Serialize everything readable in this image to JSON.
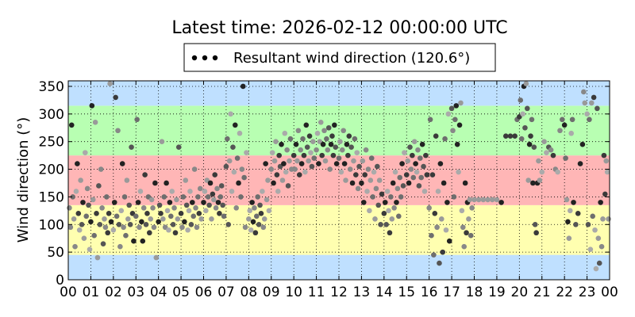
{
  "chart_data": {
    "type": "scatter",
    "title": "Latest time: 2026-02-12 00:00:00 UTC",
    "xlabel": "",
    "ylabel": "Wind direction (°)",
    "legend": {
      "label": "Resultant wind direction (120.6°)",
      "placement": "top-center"
    },
    "xlim": [
      0,
      24
    ],
    "ylim": [
      0,
      360
    ],
    "x_ticks": [
      "00",
      "01",
      "02",
      "03",
      "04",
      "05",
      "06",
      "07",
      "08",
      "09",
      "10",
      "11",
      "12",
      "13",
      "14",
      "15",
      "16",
      "17",
      "18",
      "19",
      "20",
      "21",
      "22",
      "23",
      "00"
    ],
    "y_ticks": [
      0,
      50,
      100,
      150,
      200,
      250,
      300,
      350
    ],
    "grid": true,
    "bands": [
      {
        "from": 0,
        "to": 45,
        "color": "#bfe0ff"
      },
      {
        "from": 45,
        "to": 135,
        "color": "#ffffb0"
      },
      {
        "from": 135,
        "to": 225,
        "color": "#ffb6b6"
      },
      {
        "from": 225,
        "to": 315,
        "color": "#b8ffb2"
      },
      {
        "from": 315,
        "to": 360,
        "color": "#bfe0ff"
      }
    ],
    "points": [
      [
        0.05,
        130
      ],
      [
        0.1,
        95
      ],
      [
        0.15,
        280
      ],
      [
        0.2,
        150
      ],
      [
        0.25,
        110
      ],
      [
        0.3,
        60
      ],
      [
        0.35,
        160
      ],
      [
        0.4,
        210
      ],
      [
        0.45,
        120
      ],
      [
        0.5,
        90
      ],
      [
        0.55,
        180
      ],
      [
        0.6,
        100
      ],
      [
        0.65,
        140
      ],
      [
        0.7,
        75
      ],
      [
        0.75,
        230
      ],
      [
        0.8,
        115
      ],
      [
        0.85,
        165
      ],
      [
        0.9,
        135
      ],
      [
        0.95,
        55
      ],
      [
        1.0,
        105
      ],
      [
        1.05,
        315
      ],
      [
        1.1,
        145
      ],
      [
        1.15,
        80
      ],
      [
        1.2,
        285
      ],
      [
        1.25,
        120
      ],
      [
        1.3,
        40
      ],
      [
        1.35,
        170
      ],
      [
        1.4,
        100
      ],
      [
        1.45,
        200
      ],
      [
        1.5,
        130
      ],
      [
        1.55,
        65
      ],
      [
        1.6,
        110
      ],
      [
        1.65,
        95
      ],
      [
        1.7,
        150
      ],
      [
        1.75,
        85
      ],
      [
        1.8,
        120
      ],
      [
        1.85,
        355
      ],
      [
        1.9,
        105
      ],
      [
        2.0,
        90
      ],
      [
        2.05,
        140
      ],
      [
        2.1,
        330
      ],
      [
        2.15,
        115
      ],
      [
        2.2,
        270
      ],
      [
        2.25,
        100
      ],
      [
        2.3,
        60
      ],
      [
        2.35,
        125
      ],
      [
        2.4,
        210
      ],
      [
        2.45,
        95
      ],
      [
        2.5,
        150
      ],
      [
        2.55,
        80
      ],
      [
        2.6,
        180
      ],
      [
        2.65,
        110
      ],
      [
        2.7,
        135
      ],
      [
        2.75,
        100
      ],
      [
        2.8,
        240
      ],
      [
        2.85,
        120
      ],
      [
        2.9,
        70
      ],
      [
        3.0,
        115
      ],
      [
        3.05,
        290
      ],
      [
        3.1,
        140
      ],
      [
        3.15,
        95
      ],
      [
        3.2,
        160
      ],
      [
        3.25,
        105
      ],
      [
        3.3,
        70
      ],
      [
        3.35,
        130
      ],
      [
        3.4,
        190
      ],
      [
        3.45,
        100
      ],
      [
        3.5,
        120
      ],
      [
        3.55,
        150
      ],
      [
        3.6,
        85
      ],
      [
        3.65,
        110
      ],
      [
        3.7,
        145
      ],
      [
        3.75,
        130
      ],
      [
        3.8,
        95
      ],
      [
        3.85,
        175
      ],
      [
        3.9,
        40
      ],
      [
        4.0,
        105
      ],
      [
        4.05,
        135
      ],
      [
        4.1,
        120
      ],
      [
        4.15,
        250
      ],
      [
        4.2,
        110
      ],
      [
        4.25,
        150
      ],
      [
        4.3,
        95
      ],
      [
        4.35,
        175
      ],
      [
        4.4,
        125
      ],
      [
        4.45,
        90
      ],
      [
        4.5,
        140
      ],
      [
        4.55,
        115
      ],
      [
        4.6,
        160
      ],
      [
        4.65,
        100
      ],
      [
        4.7,
        130
      ],
      [
        4.75,
        85
      ],
      [
        4.8,
        145
      ],
      [
        4.85,
        110
      ],
      [
        4.9,
        240
      ],
      [
        5.0,
        120
      ],
      [
        5.05,
        95
      ],
      [
        5.1,
        150
      ],
      [
        5.15,
        105
      ],
      [
        5.2,
        180
      ],
      [
        5.25,
        135
      ],
      [
        5.3,
        90
      ],
      [
        5.35,
        125
      ],
      [
        5.4,
        160
      ],
      [
        5.45,
        100
      ],
      [
        5.5,
        140
      ],
      [
        5.55,
        115
      ],
      [
        5.6,
        200
      ],
      [
        5.65,
        130
      ],
      [
        5.7,
        95
      ],
      [
        5.75,
        150
      ],
      [
        5.8,
        120
      ],
      [
        5.85,
        165
      ],
      [
        5.9,
        110
      ],
      [
        6.0,
        140
      ],
      [
        6.05,
        160
      ],
      [
        6.1,
        125
      ],
      [
        6.15,
        180
      ],
      [
        6.2,
        150
      ],
      [
        6.25,
        135
      ],
      [
        6.3,
        175
      ],
      [
        6.35,
        110
      ],
      [
        6.4,
        155
      ],
      [
        6.45,
        145
      ],
      [
        6.5,
        190
      ],
      [
        6.55,
        130
      ],
      [
        6.6,
        165
      ],
      [
        6.65,
        140
      ],
      [
        6.7,
        120
      ],
      [
        6.75,
        150
      ],
      [
        6.8,
        170
      ],
      [
        6.85,
        135
      ],
      [
        6.9,
        115
      ],
      [
        7.0,
        205
      ],
      [
        7.05,
        255
      ],
      [
        7.1,
        100
      ],
      [
        7.15,
        215
      ],
      [
        7.2,
        300
      ],
      [
        7.25,
        160
      ],
      [
        7.3,
        240
      ],
      [
        7.35,
        195
      ],
      [
        7.4,
        280
      ],
      [
        7.45,
        130
      ],
      [
        7.5,
        220
      ],
      [
        7.55,
        175
      ],
      [
        7.6,
        265
      ],
      [
        7.65,
        150
      ],
      [
        7.7,
        200
      ],
      [
        7.75,
        350
      ],
      [
        7.8,
        185
      ],
      [
        7.85,
        95
      ],
      [
        7.9,
        230
      ],
      [
        8.0,
        110
      ],
      [
        8.05,
        125
      ],
      [
        8.1,
        90
      ],
      [
        8.15,
        140
      ],
      [
        8.2,
        105
      ],
      [
        8.25,
        130
      ],
      [
        8.3,
        85
      ],
      [
        8.35,
        115
      ],
      [
        8.4,
        150
      ],
      [
        8.45,
        100
      ],
      [
        8.5,
        135
      ],
      [
        8.55,
        120
      ],
      [
        8.6,
        160
      ],
      [
        8.65,
        95
      ],
      [
        8.7,
        110
      ],
      [
        8.75,
        210
      ],
      [
        8.8,
        145
      ],
      [
        8.85,
        180
      ],
      [
        8.9,
        125
      ],
      [
        9.0,
        200
      ],
      [
        9.05,
        230
      ],
      [
        9.1,
        175
      ],
      [
        9.15,
        215
      ],
      [
        9.2,
        250
      ],
      [
        9.25,
        190
      ],
      [
        9.3,
        160
      ],
      [
        9.35,
        225
      ],
      [
        9.4,
        205
      ],
      [
        9.45,
        245
      ],
      [
        9.5,
        180
      ],
      [
        9.55,
        210
      ],
      [
        9.6,
        265
      ],
      [
        9.65,
        195
      ],
      [
        9.7,
        235
      ],
      [
        9.75,
        170
      ],
      [
        9.8,
        215
      ],
      [
        9.85,
        255
      ],
      [
        9.9,
        200
      ],
      [
        10.0,
        225
      ],
      [
        10.05,
        200
      ],
      [
        10.1,
        245
      ],
      [
        10.15,
        215
      ],
      [
        10.2,
        270
      ],
      [
        10.25,
        190
      ],
      [
        10.3,
        235
      ],
      [
        10.35,
        210
      ],
      [
        10.4,
        255
      ],
      [
        10.45,
        225
      ],
      [
        10.5,
        195
      ],
      [
        10.55,
        280
      ],
      [
        10.6,
        240
      ],
      [
        10.65,
        215
      ],
      [
        10.7,
        260
      ],
      [
        10.75,
        230
      ],
      [
        10.8,
        205
      ],
      [
        10.85,
        250
      ],
      [
        10.9,
        220
      ],
      [
        11.0,
        235
      ],
      [
        11.05,
        265
      ],
      [
        11.1,
        210
      ],
      [
        11.15,
        250
      ],
      [
        11.2,
        285
      ],
      [
        11.25,
        225
      ],
      [
        11.3,
        245
      ],
      [
        11.35,
        270
      ],
      [
        11.4,
        215
      ],
      [
        11.45,
        255
      ],
      [
        11.5,
        235
      ],
      [
        11.55,
        275
      ],
      [
        11.6,
        200
      ],
      [
        11.65,
        245
      ],
      [
        11.7,
        260
      ],
      [
        11.75,
        225
      ],
      [
        11.8,
        280
      ],
      [
        11.85,
        240
      ],
      [
        11.9,
        210
      ],
      [
        12.0,
        220
      ],
      [
        12.05,
        250
      ],
      [
        12.1,
        195
      ],
      [
        12.15,
        235
      ],
      [
        12.2,
        270
      ],
      [
        12.25,
        210
      ],
      [
        12.3,
        180
      ],
      [
        12.35,
        245
      ],
      [
        12.4,
        225
      ],
      [
        12.45,
        260
      ],
      [
        12.5,
        200
      ],
      [
        12.55,
        240
      ],
      [
        12.6,
        175
      ],
      [
        12.65,
        215
      ],
      [
        12.7,
        255
      ],
      [
        12.75,
        190
      ],
      [
        12.8,
        230
      ],
      [
        12.85,
        165
      ],
      [
        12.9,
        205
      ],
      [
        13.0,
        175
      ],
      [
        13.05,
        215
      ],
      [
        13.1,
        140
      ],
      [
        13.15,
        190
      ],
      [
        13.2,
        235
      ],
      [
        13.25,
        160
      ],
      [
        13.3,
        200
      ],
      [
        13.35,
        125
      ],
      [
        13.4,
        180
      ],
      [
        13.45,
        220
      ],
      [
        13.5,
        150
      ],
      [
        13.55,
        195
      ],
      [
        13.6,
        110
      ],
      [
        13.65,
        165
      ],
      [
        13.7,
        205
      ],
      [
        13.75,
        135
      ],
      [
        13.8,
        180
      ],
      [
        13.85,
        100
      ],
      [
        13.9,
        155
      ],
      [
        14.0,
        120
      ],
      [
        14.05,
        140
      ],
      [
        14.1,
        100
      ],
      [
        14.15,
        160
      ],
      [
        14.2,
        125
      ],
      [
        14.25,
        85
      ],
      [
        14.3,
        150
      ],
      [
        14.35,
        110
      ],
      [
        14.4,
        175
      ],
      [
        14.45,
        130
      ],
      [
        14.5,
        195
      ],
      [
        14.55,
        140
      ],
      [
        14.6,
        165
      ],
      [
        14.65,
        115
      ],
      [
        14.7,
        185
      ],
      [
        14.75,
        150
      ],
      [
        14.8,
        210
      ],
      [
        14.85,
        170
      ],
      [
        14.9,
        230
      ],
      [
        15.0,
        190
      ],
      [
        15.05,
        215
      ],
      [
        15.1,
        175
      ],
      [
        15.15,
        240
      ],
      [
        15.2,
        200
      ],
      [
        15.25,
        225
      ],
      [
        15.3,
        185
      ],
      [
        15.35,
        250
      ],
      [
        15.4,
        210
      ],
      [
        15.45,
        195
      ],
      [
        15.5,
        235
      ],
      [
        15.55,
        170
      ],
      [
        15.6,
        220
      ],
      [
        15.65,
        185
      ],
      [
        15.7,
        245
      ],
      [
        15.75,
        205
      ],
      [
        15.8,
        160
      ],
      [
        15.85,
        225
      ],
      [
        15.9,
        190
      ],
      [
        16.0,
        130
      ],
      [
        16.05,
        290
      ],
      [
        16.1,
        80
      ],
      [
        16.15,
        190
      ],
      [
        16.2,
        45
      ],
      [
        16.25,
        120
      ],
      [
        16.3,
        260
      ],
      [
        16.35,
        95
      ],
      [
        16.4,
        160
      ],
      [
        16.45,
        30
      ],
      [
        16.5,
        210
      ],
      [
        16.55,
        110
      ],
      [
        16.6,
        50
      ],
      [
        16.65,
        175
      ],
      [
        16.7,
        255
      ],
      [
        16.75,
        90
      ],
      [
        16.8,
        140
      ],
      [
        16.85,
        300
      ],
      [
        16.9,
        70
      ],
      [
        17.0,
        310
      ],
      [
        17.05,
        270
      ],
      [
        17.1,
        150
      ],
      [
        17.15,
        290
      ],
      [
        17.2,
        315
      ],
      [
        17.25,
        245
      ],
      [
        17.3,
        195
      ],
      [
        17.35,
        280
      ],
      [
        17.4,
        320
      ],
      [
        17.45,
        125
      ],
      [
        17.5,
        95
      ],
      [
        17.55,
        60
      ],
      [
        17.6,
        175
      ],
      [
        17.65,
        85
      ],
      [
        17.7,
        140
      ],
      [
        17.75,
        110
      ],
      [
        17.8,
        145
      ],
      [
        17.85,
        80
      ],
      [
        17.9,
        130
      ],
      [
        18.0,
        145
      ],
      [
        18.2,
        145
      ],
      [
        18.4,
        145
      ],
      [
        18.6,
        145
      ],
      [
        18.8,
        145
      ],
      [
        19.0,
        145
      ],
      [
        19.2,
        140
      ],
      [
        19.4,
        260
      ],
      [
        19.6,
        260
      ],
      [
        19.8,
        260
      ],
      [
        19.9,
        290
      ],
      [
        20.0,
        295
      ],
      [
        20.05,
        325
      ],
      [
        20.1,
        255
      ],
      [
        20.15,
        300
      ],
      [
        20.2,
        350
      ],
      [
        20.25,
        275
      ],
      [
        20.3,
        355
      ],
      [
        20.35,
        310
      ],
      [
        20.4,
        180
      ],
      [
        20.45,
        245
      ],
      [
        20.5,
        260
      ],
      [
        20.55,
        290
      ],
      [
        20.6,
        175
      ],
      [
        20.65,
        240
      ],
      [
        20.7,
        100
      ],
      [
        20.75,
        85
      ],
      [
        20.8,
        175
      ],
      [
        20.85,
        215
      ],
      [
        20.9,
        180
      ],
      [
        21.0,
        195
      ],
      [
        21.1,
        250
      ],
      [
        21.2,
        230
      ],
      [
        21.3,
        240
      ],
      [
        21.4,
        235
      ],
      [
        21.5,
        225
      ],
      [
        21.6,
        200
      ],
      [
        21.7,
        195
      ],
      [
        21.8,
        270
      ],
      [
        21.9,
        290
      ],
      [
        22.0,
        280
      ],
      [
        22.05,
        220
      ],
      [
        22.1,
        145
      ],
      [
        22.15,
        105
      ],
      [
        22.2,
        75
      ],
      [
        22.25,
        125
      ],
      [
        22.3,
        265
      ],
      [
        22.35,
        290
      ],
      [
        22.4,
        140
      ],
      [
        22.5,
        100
      ],
      [
        22.6,
        120
      ],
      [
        22.7,
        210
      ],
      [
        22.8,
        245
      ],
      [
        22.85,
        340
      ],
      [
        22.9,
        320
      ],
      [
        23.0,
        300
      ],
      [
        23.05,
        100
      ],
      [
        23.1,
        290
      ],
      [
        23.15,
        55
      ],
      [
        23.2,
        320
      ],
      [
        23.25,
        115
      ],
      [
        23.3,
        330
      ],
      [
        23.35,
        90
      ],
      [
        23.4,
        20
      ],
      [
        23.45,
        310
      ],
      [
        23.5,
        75
      ],
      [
        23.55,
        30
      ],
      [
        23.6,
        140
      ],
      [
        23.65,
        60
      ],
      [
        23.7,
        110
      ],
      [
        23.75,
        225
      ],
      [
        23.8,
        155
      ],
      [
        23.85,
        215
      ],
      [
        23.9,
        195
      ],
      [
        23.95,
        110
      ]
    ]
  }
}
